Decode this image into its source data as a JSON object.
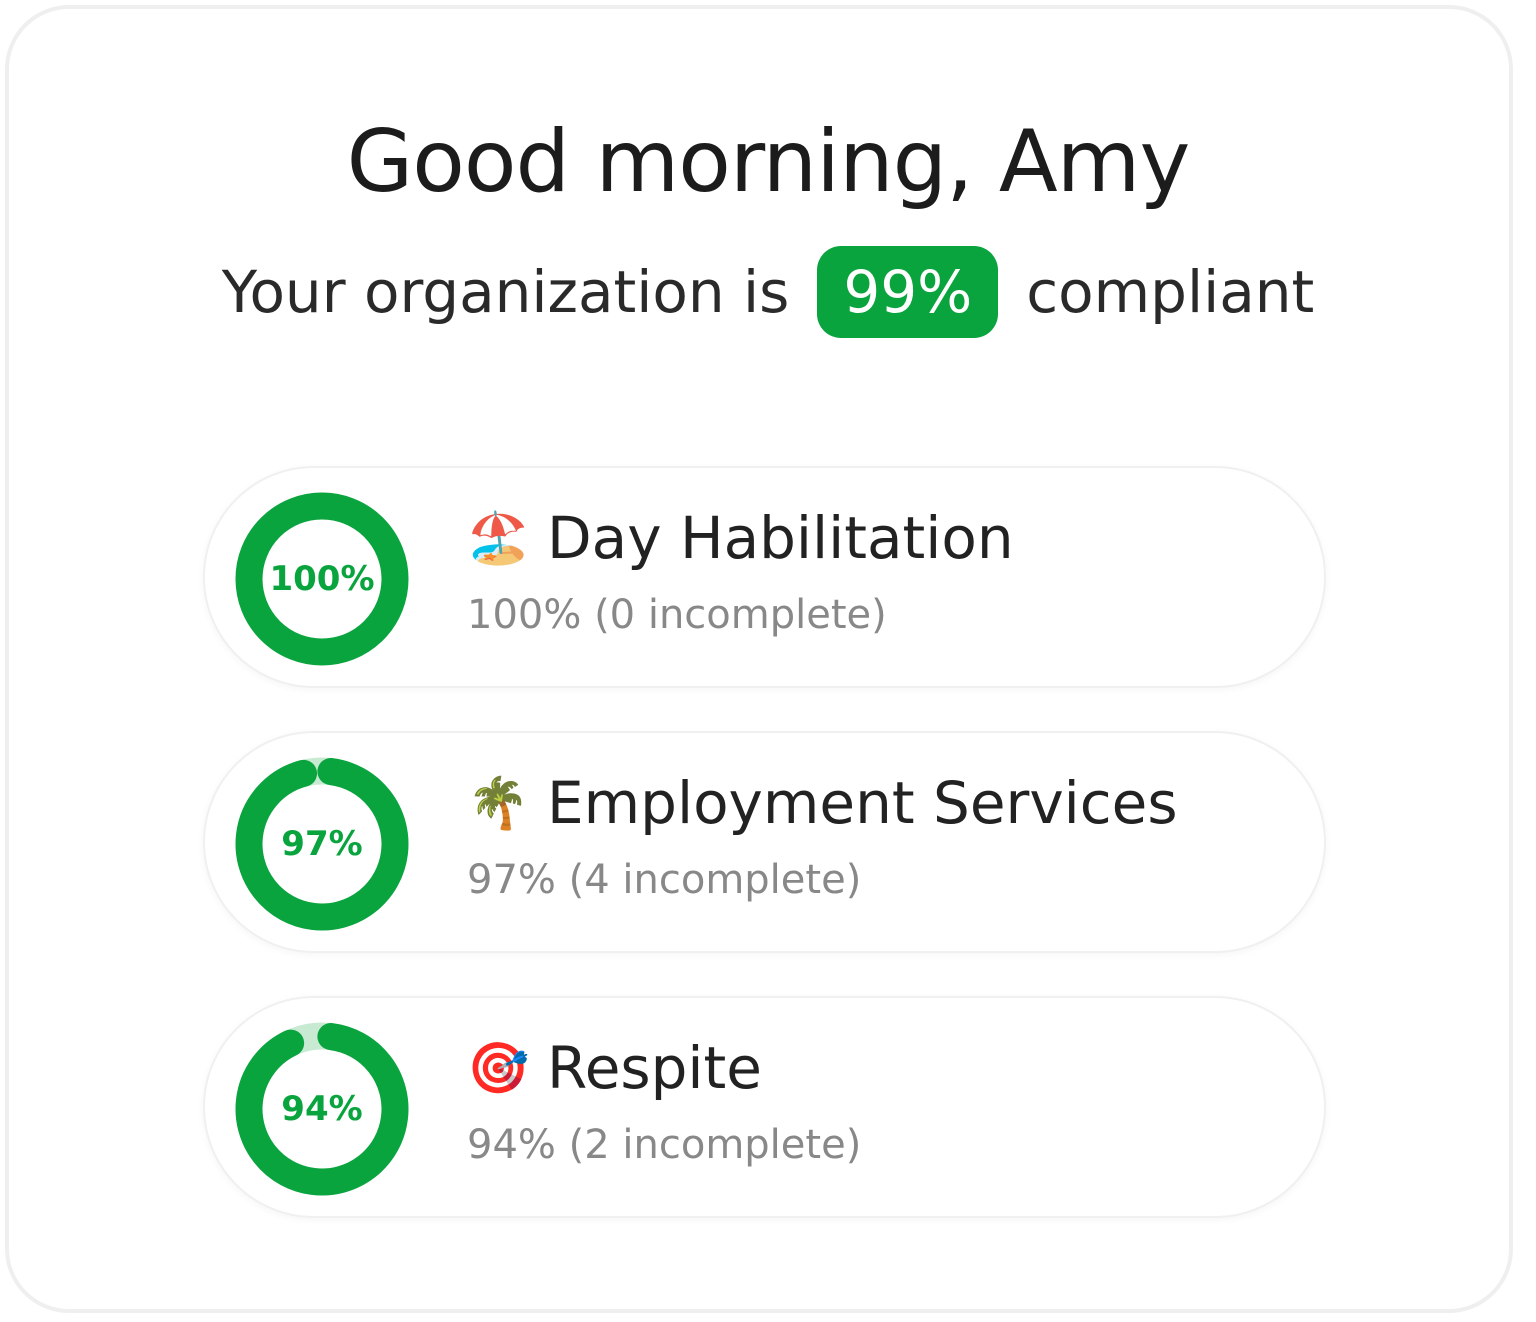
{
  "greeting": "Good morning, Amy",
  "compliance": {
    "prefix": "Your organization is",
    "value": "99%",
    "suffix": "compliant"
  },
  "colors": {
    "accent": "#0aa43f",
    "track": "#c8e9d2"
  },
  "programs": [
    {
      "icon": "beach-umbrella-icon",
      "emoji": "🏖️",
      "name": "Day Habilitation",
      "percent": 100,
      "percent_label": "100%",
      "detail": "100% (0 incomplete)"
    },
    {
      "icon": "palm-tree-icon",
      "emoji": "🌴",
      "name": "Employment Services",
      "percent": 97,
      "percent_label": "97%",
      "detail": "97% (4 incomplete)"
    },
    {
      "icon": "target-dart-icon",
      "emoji": "🎯",
      "name": "Respite",
      "percent": 94,
      "percent_label": "94%",
      "detail": "94% (2 incomplete)"
    }
  ]
}
